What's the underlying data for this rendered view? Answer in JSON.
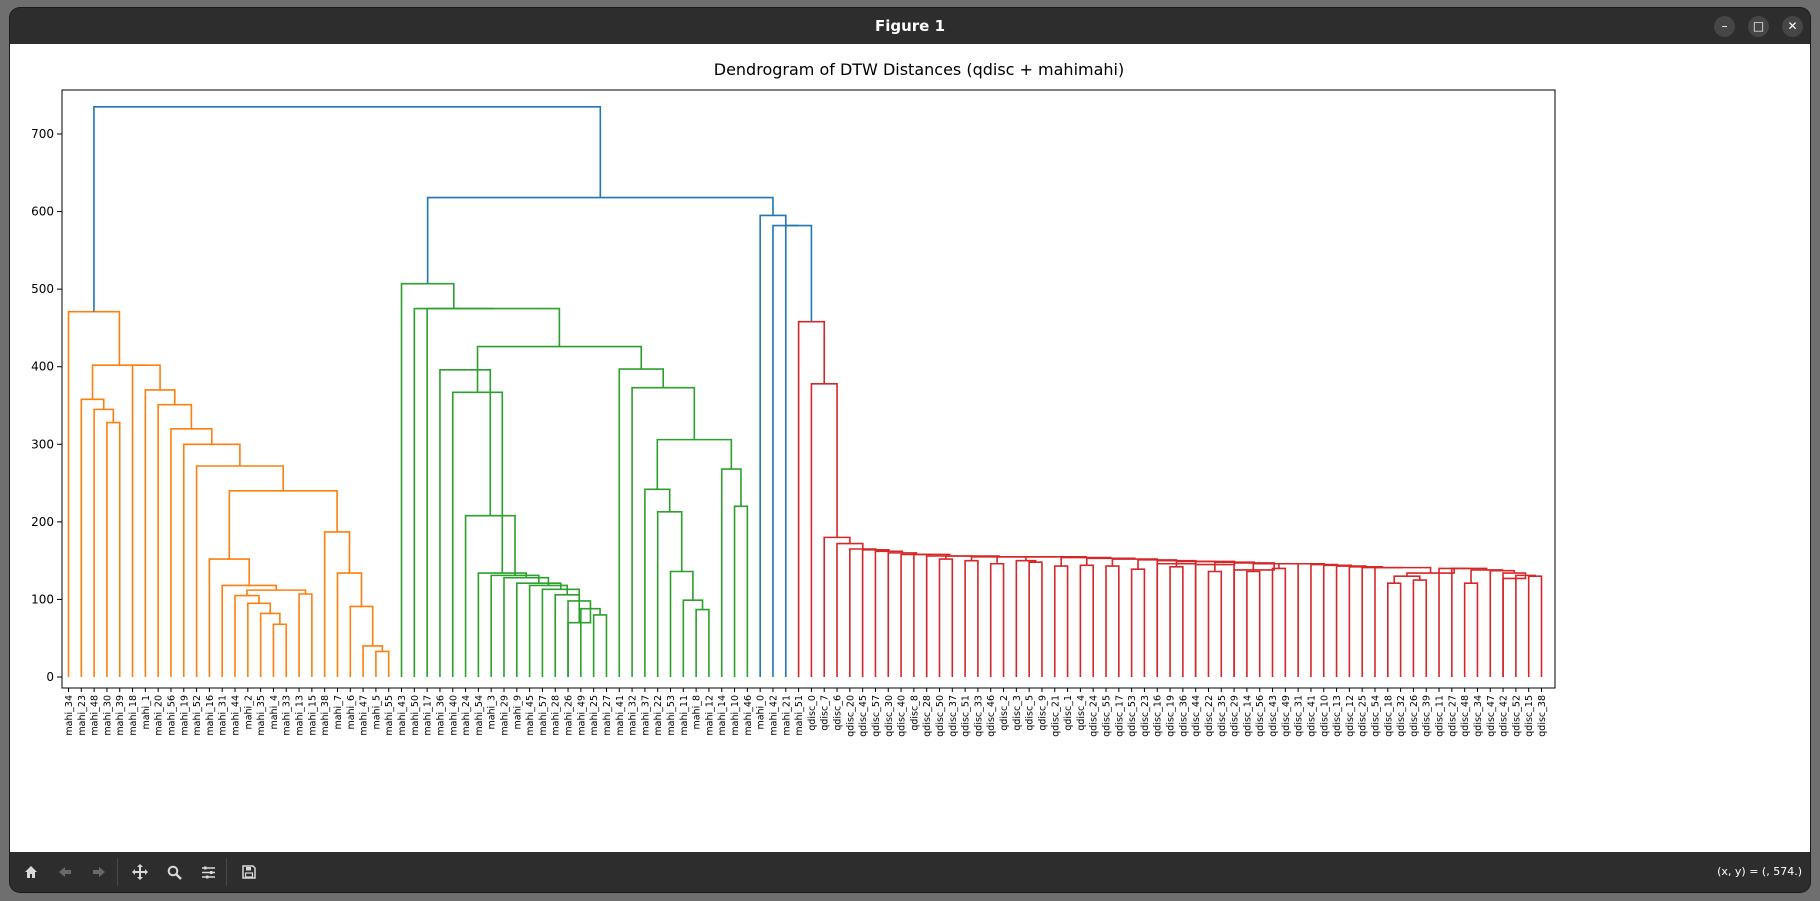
{
  "window": {
    "title": "Figure 1"
  },
  "status": {
    "coords": "(x, y) = (, 574.)"
  },
  "toolbar": {
    "items": [
      "home-icon",
      "back-icon",
      "forward-icon",
      "pan-icon",
      "zoom-icon",
      "configure-subplots-icon",
      "save-icon"
    ]
  },
  "chart_data": {
    "type": "dendrogram",
    "title": "Dendrogram of DTW Distances (qdisc + mahimahi)",
    "xlabel": "",
    "ylabel": "",
    "ylim": [
      0,
      767
    ],
    "yticks": [
      0,
      100,
      200,
      300,
      400,
      500,
      600,
      700
    ],
    "grid": false,
    "colors": {
      "orange": "#ff7f0e",
      "green": "#2ca02c",
      "red": "#d62728",
      "blue": "#1f77b4"
    },
    "leaves": [
      "mahi_34",
      "mahi_23",
      "mahi_48",
      "mahi_30",
      "mahi_39",
      "mahi_18",
      "mahi_1",
      "mahi_20",
      "mahi_56",
      "mahi_19",
      "mahi_52",
      "mahi_16",
      "mahi_31",
      "mahi_44",
      "mahi_2",
      "mahi_35",
      "mahi_4",
      "mahi_33",
      "mahi_13",
      "mahi_15",
      "mahi_38",
      "mahi_7",
      "mahi_6",
      "mahi_47",
      "mahi_5",
      "mahi_55",
      "mahi_43",
      "mahi_50",
      "mahi_17",
      "mahi_36",
      "mahi_40",
      "mahi_24",
      "mahi_54",
      "mahi_3",
      "mahi_29",
      "mahi_9",
      "mahi_45",
      "mahi_57",
      "mahi_28",
      "mahi_26",
      "mahi_49",
      "mahi_25",
      "mahi_27",
      "mahi_41",
      "mahi_32",
      "mahi_37",
      "mahi_22",
      "mahi_53",
      "mahi_11",
      "mahi_8",
      "mahi_12",
      "mahi_14",
      "mahi_10",
      "mahi_46",
      "mahi_0",
      "mahi_42",
      "mahi_21",
      "mahi_51",
      "qdisc_0",
      "qdisc_7",
      "qdisc_6",
      "qdisc_20",
      "qdisc_45",
      "qdisc_57",
      "qdisc_30",
      "qdisc_40",
      "qdisc_8",
      "qdisc_28",
      "qdisc_50",
      "qdisc_37",
      "qdisc_51",
      "qdisc_33",
      "qdisc_46",
      "qdisc_2",
      "qdisc_3",
      "qdisc_5",
      "qdisc_9",
      "qdisc_21",
      "qdisc_1",
      "qdisc_4",
      "qdisc_24",
      "qdisc_55",
      "qdisc_17",
      "qdisc_53",
      "qdisc_23",
      "qdisc_16",
      "qdisc_19",
      "qdisc_36",
      "qdisc_44",
      "qdisc_22",
      "qdisc_35",
      "qdisc_29",
      "qdisc_14",
      "qdisc_56",
      "qdisc_43",
      "qdisc_49",
      "qdisc_31",
      "qdisc_41",
      "qdisc_10",
      "qdisc_13",
      "qdisc_12",
      "qdisc_25",
      "qdisc_54",
      "qdisc_18",
      "qdisc_32",
      "qdisc_26",
      "qdisc_39",
      "qdisc_11",
      "qdisc_27",
      "qdisc_48",
      "qdisc_34",
      "qdisc_47",
      "qdisc_42",
      "qdisc_52",
      "qdisc_15",
      "qdisc_38"
    ],
    "links": [
      {
        "a": 4,
        "b": 3,
        "h": 328,
        "c": "orange"
      },
      {
        "a": 2,
        "b": -1,
        "h": 345,
        "c": "orange"
      },
      {
        "a": 1,
        "b": -2,
        "h": 358,
        "c": "orange"
      },
      {
        "a": 17,
        "b": 16,
        "h": 68,
        "c": "orange"
      },
      {
        "a": 15,
        "b": -4,
        "h": 82,
        "c": "orange"
      },
      {
        "a": 14,
        "b": -5,
        "h": 95,
        "c": "orange"
      },
      {
        "a": 13,
        "b": -6,
        "h": 105,
        "c": "orange"
      },
      {
        "a": 19,
        "b": 18,
        "h": 107,
        "c": "orange"
      },
      {
        "a": -7,
        "b": -8,
        "h": 112,
        "c": "orange"
      },
      {
        "a": 12,
        "b": -9,
        "h": 118,
        "c": "orange"
      },
      {
        "a": 11,
        "b": -10,
        "h": 152,
        "c": "orange"
      },
      {
        "a": 25,
        "b": 24,
        "h": 33,
        "c": "orange"
      },
      {
        "a": 23,
        "b": -12,
        "h": 40,
        "c": "orange"
      },
      {
        "a": 22,
        "b": -13,
        "h": 91,
        "c": "orange"
      },
      {
        "a": 21,
        "b": -14,
        "h": 134,
        "c": "orange"
      },
      {
        "a": 20,
        "b": -15,
        "h": 187,
        "c": "orange"
      },
      {
        "a": -11,
        "b": -16,
        "h": 240,
        "c": "orange"
      },
      {
        "a": 10,
        "b": -17,
        "h": 272,
        "c": "orange"
      },
      {
        "a": 9,
        "b": -18,
        "h": 300,
        "c": "orange"
      },
      {
        "a": 8,
        "b": -19,
        "h": 320,
        "c": "orange"
      },
      {
        "a": 7,
        "b": -20,
        "h": 351,
        "c": "orange"
      },
      {
        "a": 6,
        "b": -21,
        "h": 370,
        "c": "orange"
      },
      {
        "a": 5,
        "b": -22,
        "h": 402,
        "c": "orange"
      },
      {
        "a": -3,
        "b": -23,
        "h": 402,
        "c": "orange"
      },
      {
        "a": 0,
        "b": -24,
        "h": 471,
        "c": "orange"
      },
      {
        "a": 41,
        "b": 42,
        "h": 80,
        "c": "green"
      },
      {
        "a": 40,
        "b": -26,
        "h": 88,
        "c": "green"
      },
      {
        "a": 39,
        "b": -27,
        "h": 70,
        "c": "green"
      },
      {
        "a": 39,
        "b": -27,
        "h": 98,
        "c": "green"
      },
      {
        "a": 38,
        "b": -28,
        "h": 106,
        "c": "green"
      },
      {
        "a": 37,
        "b": -29,
        "h": 113,
        "c": "green"
      },
      {
        "a": 36,
        "b": -30,
        "h": 118,
        "c": "green"
      },
      {
        "a": 35,
        "b": -31,
        "h": 121,
        "c": "green"
      },
      {
        "a": 34,
        "b": -32,
        "h": 128,
        "c": "green"
      },
      {
        "a": 33,
        "b": -33,
        "h": 131,
        "c": "green"
      },
      {
        "a": 32,
        "b": -34,
        "h": 134,
        "c": "green"
      },
      {
        "a": 31,
        "b": -35,
        "h": 208,
        "c": "green"
      },
      {
        "a": 30,
        "b": -36,
        "h": 367,
        "c": "green"
      },
      {
        "a": 29,
        "b": -37,
        "h": 396,
        "c": "green"
      },
      {
        "a": 50,
        "b": 49,
        "h": 87,
        "c": "green"
      },
      {
        "a": 48,
        "b": -40,
        "h": 99,
        "c": "green"
      },
      {
        "a": 47,
        "b": -41,
        "h": 136,
        "c": "green"
      },
      {
        "a": 46,
        "b": -42,
        "h": 213,
        "c": "green"
      },
      {
        "a": 45,
        "b": -43,
        "h": 242,
        "c": "green"
      },
      {
        "a": 53,
        "b": 52,
        "h": 220,
        "c": "green"
      },
      {
        "a": 51,
        "b": -45,
        "h": 268,
        "c": "green"
      },
      {
        "a": -44,
        "b": -46,
        "h": 306,
        "c": "green"
      },
      {
        "a": 44,
        "b": -47,
        "h": 373,
        "c": "green"
      },
      {
        "a": 43,
        "b": -48,
        "h": 397,
        "c": "green"
      },
      {
        "a": -38,
        "b": -49,
        "h": 426,
        "c": "green"
      },
      {
        "a": 28,
        "b": -50,
        "h": 475,
        "c": "green"
      },
      {
        "a": 27,
        "b": -51,
        "h": 475,
        "c": "green"
      },
      {
        "a": 26,
        "b": -52,
        "h": 507,
        "c": "green"
      },
      {
        "a": 115,
        "b": 114,
        "h": 130,
        "c": "red"
      },
      {
        "a": 113,
        "b": -54,
        "h": 131,
        "c": "red"
      },
      {
        "a": 112,
        "b": -55,
        "h": 127,
        "c": "red"
      },
      {
        "a": 112,
        "b": -55,
        "h": 134,
        "c": "red"
      },
      {
        "a": 111,
        "b": -57,
        "h": 137,
        "c": "red"
      },
      {
        "a": 110,
        "b": 109,
        "h": 121,
        "c": "red"
      },
      {
        "a": -58,
        "b": -59,
        "h": 138,
        "c": "red"
      },
      {
        "a": 108,
        "b": -60,
        "h": 140,
        "c": "red"
      },
      {
        "a": 107,
        "b": -61,
        "h": 140,
        "c": "red"
      },
      {
        "a": 106,
        "b": 105,
        "h": 125,
        "c": "red"
      },
      {
        "a": 104,
        "b": 103,
        "h": 121,
        "c": "red"
      },
      {
        "a": -64,
        "b": -63,
        "h": 130,
        "c": "red"
      },
      {
        "a": -65,
        "b": -62,
        "h": 134,
        "c": "red"
      },
      {
        "a": 102,
        "b": -66,
        "h": 141,
        "c": "red"
      },
      {
        "a": 101,
        "b": -67,
        "h": 141,
        "c": "red"
      },
      {
        "a": 100,
        "b": -68,
        "h": 142,
        "c": "red"
      },
      {
        "a": 99,
        "b": -69,
        "h": 143,
        "c": "red"
      },
      {
        "a": 98,
        "b": -70,
        "h": 144,
        "c": "red"
      },
      {
        "a": 97,
        "b": -71,
        "h": 145,
        "c": "red"
      },
      {
        "a": 96,
        "b": -72,
        "h": 146,
        "c": "red"
      },
      {
        "a": 95,
        "b": 94,
        "h": 140,
        "c": "red"
      },
      {
        "a": -74,
        "b": -73,
        "h": 146,
        "c": "red"
      },
      {
        "a": 93,
        "b": 92,
        "h": 136,
        "c": "red"
      },
      {
        "a": -76,
        "b": -75,
        "h": 146,
        "c": "red"
      },
      {
        "a": 91,
        "b": -77,
        "h": 138,
        "c": "red"
      },
      {
        "a": 91,
        "b": -77,
        "h": 147,
        "c": "red"
      },
      {
        "a": 90,
        "b": 89,
        "h": 136,
        "c": "red"
      },
      {
        "a": -80,
        "b": -79,
        "h": 148,
        "c": "red"
      },
      {
        "a": 88,
        "b": -81,
        "h": 145,
        "c": "red"
      },
      {
        "a": 88,
        "b": -81,
        "h": 149,
        "c": "red"
      },
      {
        "a": 87,
        "b": 86,
        "h": 142,
        "c": "red"
      },
      {
        "a": -84,
        "b": -83,
        "h": 149,
        "c": "red"
      },
      {
        "a": 85,
        "b": -85,
        "h": 146,
        "c": "red"
      },
      {
        "a": 85,
        "b": -85,
        "h": 150,
        "c": "red"
      },
      {
        "a": 84,
        "b": 83,
        "h": 139,
        "c": "red"
      },
      {
        "a": -88,
        "b": -87,
        "h": 151,
        "c": "red"
      },
      {
        "a": 82,
        "b": 81,
        "h": 143,
        "c": "red"
      },
      {
        "a": -90,
        "b": -89,
        "h": 152,
        "c": "red"
      },
      {
        "a": 80,
        "b": 79,
        "h": 144,
        "c": "red"
      },
      {
        "a": -92,
        "b": -91,
        "h": 153,
        "c": "red"
      },
      {
        "a": 78,
        "b": 77,
        "h": 143,
        "c": "red"
      },
      {
        "a": -94,
        "b": -93,
        "h": 154,
        "c": "red"
      },
      {
        "a": 76,
        "b": 75,
        "h": 148,
        "c": "red"
      },
      {
        "a": 74,
        "b": -96,
        "h": 150,
        "c": "red"
      },
      {
        "a": -97,
        "b": -95,
        "h": 155,
        "c": "red"
      },
      {
        "a": 73,
        "b": 72,
        "h": 146,
        "c": "red"
      },
      {
        "a": -99,
        "b": -98,
        "h": 155,
        "c": "red"
      },
      {
        "a": 71,
        "b": 70,
        "h": 150,
        "c": "red"
      },
      {
        "a": -101,
        "b": -100,
        "h": 155,
        "c": "red"
      },
      {
        "a": 69,
        "b": 68,
        "h": 152,
        "c": "red"
      },
      {
        "a": -103,
        "b": -102,
        "h": 156,
        "c": "red"
      },
      {
        "a": 67,
        "b": -104,
        "h": 156,
        "c": "red"
      },
      {
        "a": 66,
        "b": -105,
        "h": 158,
        "c": "red"
      },
      {
        "a": 65,
        "b": -106,
        "h": 158,
        "c": "red"
      },
      {
        "a": 64,
        "b": -107,
        "h": 160,
        "c": "red"
      },
      {
        "a": 63,
        "b": -108,
        "h": 162,
        "c": "red"
      },
      {
        "a": 62,
        "b": -109,
        "h": 164,
        "c": "red"
      },
      {
        "a": 61,
        "b": -110,
        "h": 165,
        "c": "red"
      },
      {
        "a": 60,
        "b": -111,
        "h": 172,
        "c": "red"
      },
      {
        "a": 59,
        "b": -112,
        "h": 180,
        "c": "red"
      },
      {
        "a": 58,
        "b": -113,
        "h": 378,
        "c": "red"
      },
      {
        "a": 57,
        "b": -114,
        "h": 458,
        "c": "red"
      },
      {
        "a": 56,
        "b": -115,
        "h": 582,
        "c": "blue"
      },
      {
        "a": 55,
        "b": -116,
        "h": 582,
        "c": "blue"
      },
      {
        "a": 54,
        "b": -117,
        "h": 595,
        "c": "blue"
      },
      {
        "a": -53,
        "b": -118,
        "h": 618,
        "c": "blue"
      },
      {
        "a": -25,
        "b": -119,
        "h": 735,
        "c": "blue"
      }
    ]
  }
}
